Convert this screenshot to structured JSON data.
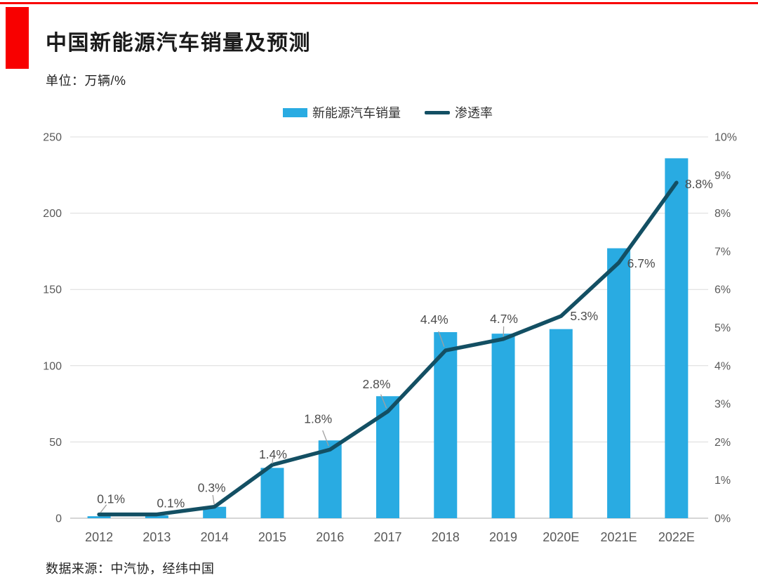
{
  "header": {
    "title": "中国新能源汽车销量及预测",
    "unit": "单位：万辆/%"
  },
  "legend": {
    "bar_label": "新能源汽车销量",
    "line_label": "渗透率"
  },
  "footer": {
    "source": "数据来源：中汽协，经纬中国"
  },
  "colors": {
    "accent_red": "#F80000",
    "bar": "#29ABE2",
    "line": "#134F63",
    "grid": "#DCDCDC",
    "axis_line": "#C8C8C8",
    "axis_text": "#595959",
    "label_text": "#4D4D4D",
    "leader": "#A0A0A0"
  },
  "chart_data": {
    "type": "combo-bar-line",
    "title": "中国新能源汽车销量及预测",
    "unit_note": "单位：万辆/%",
    "categories": [
      "2012",
      "2013",
      "2014",
      "2015",
      "2016",
      "2017",
      "2018",
      "2019",
      "2020E",
      "2021E",
      "2022E"
    ],
    "series": [
      {
        "name": "新能源汽车销量",
        "type": "bar",
        "axis": "left",
        "unit": "万辆",
        "values": [
          1.3,
          1.8,
          7.5,
          33,
          51,
          80,
          122,
          121,
          124,
          177,
          236
        ]
      },
      {
        "name": "渗透率",
        "type": "line",
        "axis": "right",
        "unit": "%",
        "values": [
          0.1,
          0.1,
          0.3,
          1.4,
          1.8,
          2.8,
          4.4,
          4.7,
          5.3,
          6.7,
          8.8
        ],
        "point_labels": [
          "0.1%",
          "0.1%",
          "0.3%",
          "1.4%",
          "1.8%",
          "2.8%",
          "4.4%",
          "4.7%",
          "5.3%",
          "6.7%",
          "8.8%"
        ]
      }
    ],
    "left_axis": {
      "min": 0,
      "max": 250,
      "tick_values": [
        0,
        50,
        100,
        150,
        200,
        250
      ],
      "tick_labels": [
        "0",
        "50",
        "100",
        "150",
        "200",
        "250"
      ]
    },
    "right_axis": {
      "min": 0,
      "max": 10,
      "tick_values": [
        0,
        1,
        2,
        3,
        4,
        5,
        6,
        7,
        8,
        9,
        10
      ],
      "tick_labels": [
        "0%",
        "1%",
        "2%",
        "3%",
        "4%",
        "5%",
        "6%",
        "7%",
        "8%",
        "9%",
        "10%"
      ]
    },
    "gridline_right_values": [
      0,
      2,
      4,
      6,
      8,
      10
    ],
    "legend_position": "top-center",
    "grid": "horizontal-only"
  }
}
